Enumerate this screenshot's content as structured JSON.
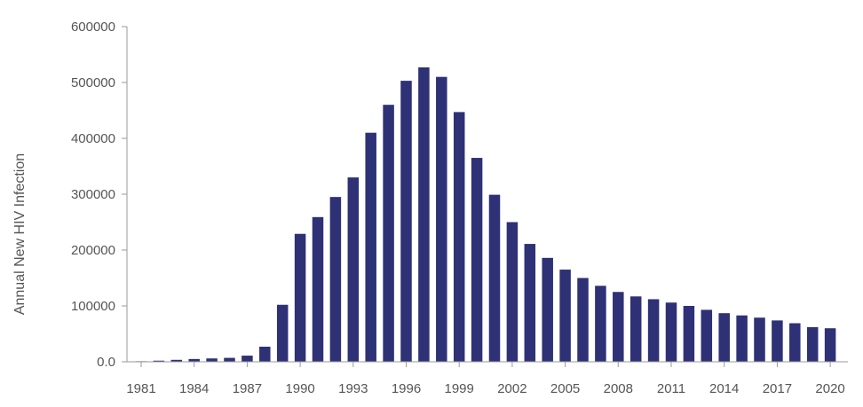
{
  "chart_data": {
    "type": "bar",
    "title": "",
    "xlabel": "",
    "ylabel": "Annual New HIV Infection",
    "ylim": [
      0,
      600000
    ],
    "y_ticks": [
      "0.0",
      "100000",
      "200000",
      "300000",
      "400000",
      "500000",
      "600000"
    ],
    "y_tick_values": [
      0,
      100000,
      200000,
      300000,
      400000,
      500000,
      600000
    ],
    "x_ticks": [
      "1981",
      "1984",
      "1987",
      "1990",
      "1993",
      "1996",
      "1999",
      "2002",
      "2005",
      "2008",
      "2011",
      "2014",
      "2017",
      "2020"
    ],
    "grid": false,
    "legend": "none",
    "colors": {
      "bar": "#2e3175",
      "axis": "#999999",
      "text": "#555555"
    },
    "categories": [
      1981,
      1982,
      1983,
      1984,
      1985,
      1986,
      1987,
      1988,
      1989,
      1990,
      1991,
      1992,
      1993,
      1994,
      1995,
      1996,
      1997,
      1998,
      1999,
      2000,
      2001,
      2002,
      2003,
      2004,
      2005,
      2006,
      2007,
      2008,
      2009,
      2010,
      2011,
      2012,
      2013,
      2014,
      2015,
      2016,
      2017,
      2018,
      2019,
      2020,
      2021
    ],
    "values": [
      1000,
      2000,
      3500,
      5000,
      6000,
      7000,
      11000,
      27000,
      102000,
      229000,
      259000,
      295000,
      330000,
      410000,
      460000,
      503000,
      527000,
      510000,
      447000,
      365000,
      299000,
      250000,
      211000,
      186000,
      165000,
      150000,
      136000,
      125000,
      117000,
      112000,
      106000,
      100000,
      93000,
      87000,
      83000,
      79000,
      74000,
      69000,
      62000,
      60000,
      0
    ]
  }
}
